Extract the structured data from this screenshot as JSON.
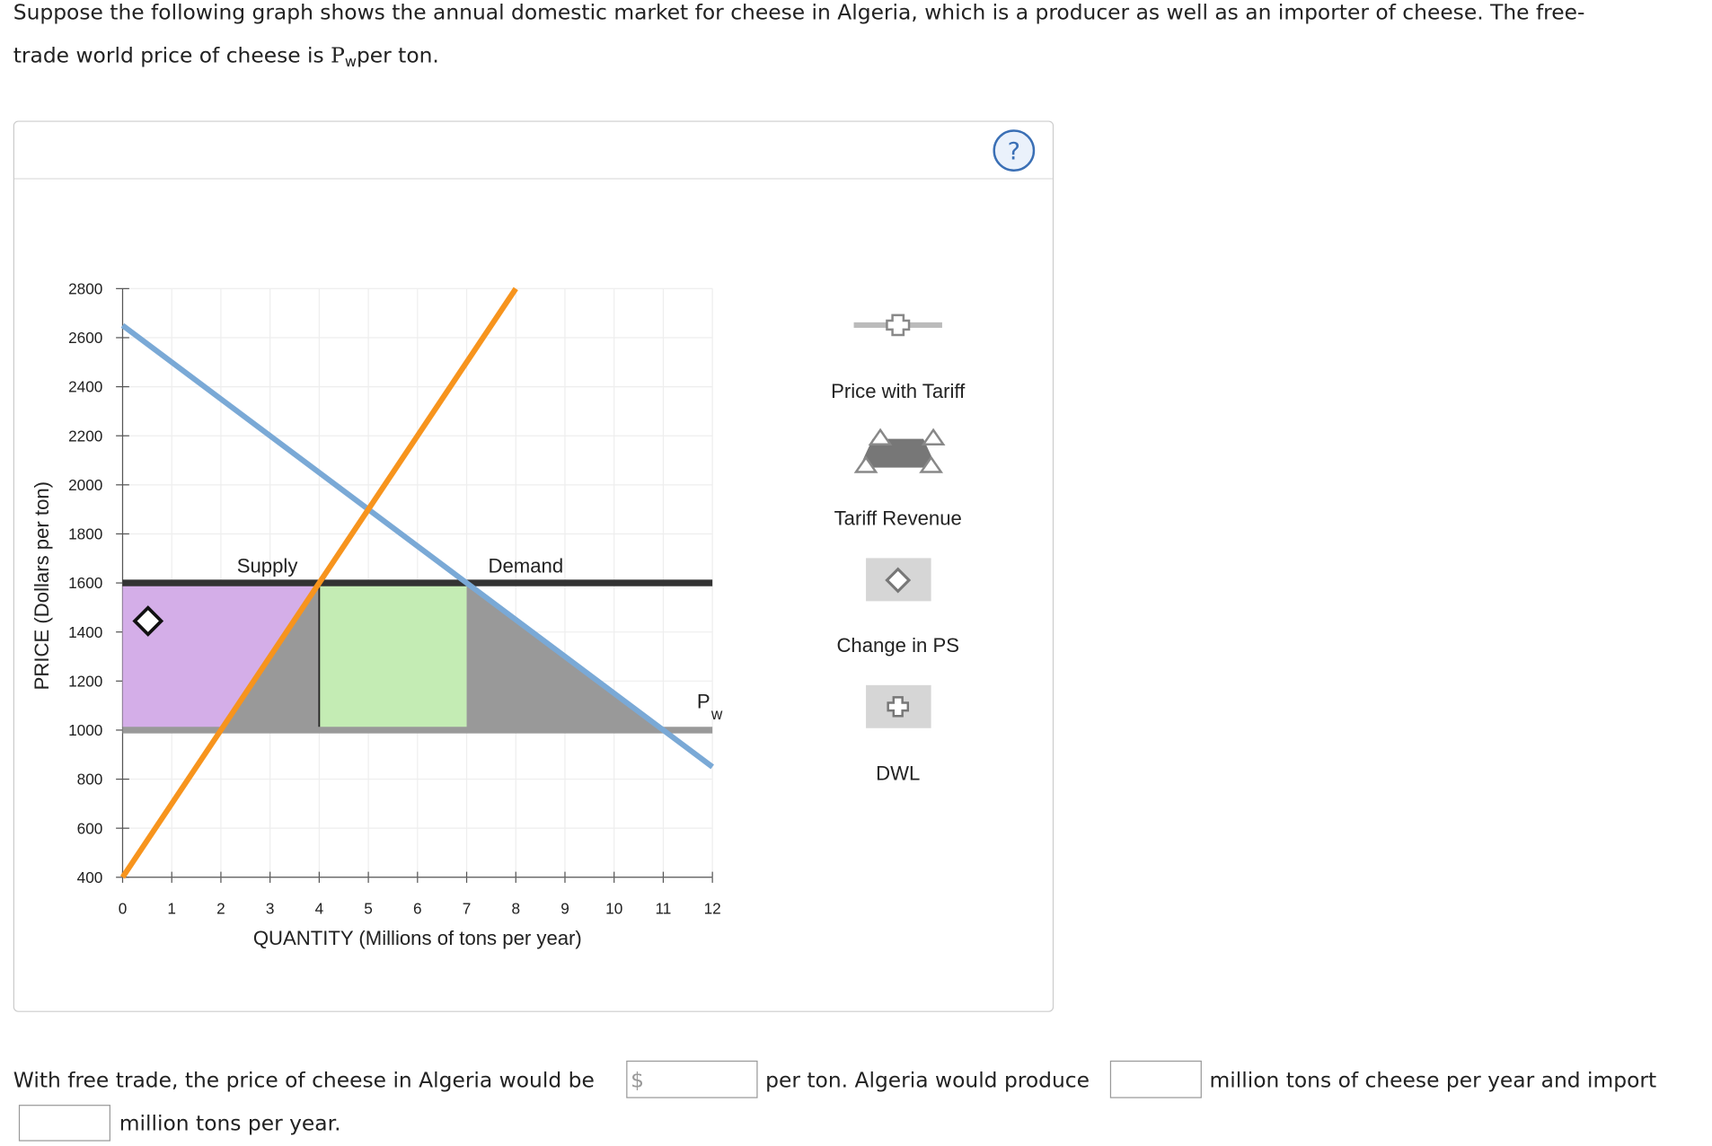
{
  "question": {
    "text_before": "Suppose the following graph shows the annual domestic market for cheese in Algeria, which is a producer as well as an importer of cheese. The free-",
    "text_line2": "trade world price of cheese is",
    "symbol": "P",
    "subscript": "w",
    "text_after": "per ton."
  },
  "graph": {
    "xlabel": "QUANTITY (Millions of tons per year)",
    "ylabel": "PRICE (Dollars per ton)",
    "xlim": [
      0,
      12
    ],
    "ylim": [
      400,
      2800
    ],
    "xticks": [
      0,
      1,
      2,
      3,
      4,
      5,
      6,
      7,
      8,
      9,
      10,
      11,
      12
    ],
    "yticks": [
      400,
      600,
      800,
      1000,
      1200,
      1400,
      1600,
      1800,
      2000,
      2200,
      2400,
      2600,
      2800
    ],
    "grid": true,
    "areas": [
      {
        "name": "Change in PS",
        "color": "#d4aee8",
        "pieces": [
          {
            "x": [
              0,
              0,
              4,
              2
            ],
            "y": [
              1000,
              1600,
              1600,
              1000
            ]
          }
        ]
      },
      {
        "name": "Tariff Revenue",
        "color": "#c4ecb4",
        "pieces": [
          {
            "x": [
              4,
              4,
              7,
              7
            ],
            "y": [
              1000,
              1600,
              1600,
              1000
            ]
          }
        ]
      },
      {
        "name": "DWL",
        "color": "#999999",
        "pieces": [
          {
            "x": [
              2,
              4,
              4
            ],
            "y": [
              1000,
              1600,
              1000
            ]
          },
          {
            "x": [
              7,
              11,
              7
            ],
            "y": [
              1600,
              1000,
              1000
            ]
          }
        ]
      }
    ],
    "lines": [
      {
        "name": "Supply",
        "color": "#f7941d",
        "x": [
          0,
          8
        ],
        "y": [
          400,
          2800
        ]
      },
      {
        "name": "Demand",
        "color": "#7aa9d6",
        "x": [
          0,
          12
        ],
        "y": [
          2650,
          850
        ]
      },
      {
        "name": "P",
        "subscript": "w",
        "color": "#999999",
        "x": [
          0,
          12
        ],
        "y": [
          1000,
          1000
        ]
      },
      {
        "name": "Price with Tariff",
        "color": "#333333",
        "x": [
          0,
          12
        ],
        "y": [
          1600,
          1600
        ]
      }
    ]
  },
  "answer": {
    "part1": "With free trade, the price of cheese in Algeria would be",
    "currency": "$",
    "part2": "per ton. Algeria would produce",
    "part3": "million tons of cheese per year and import",
    "part4": "million tons per year."
  }
}
